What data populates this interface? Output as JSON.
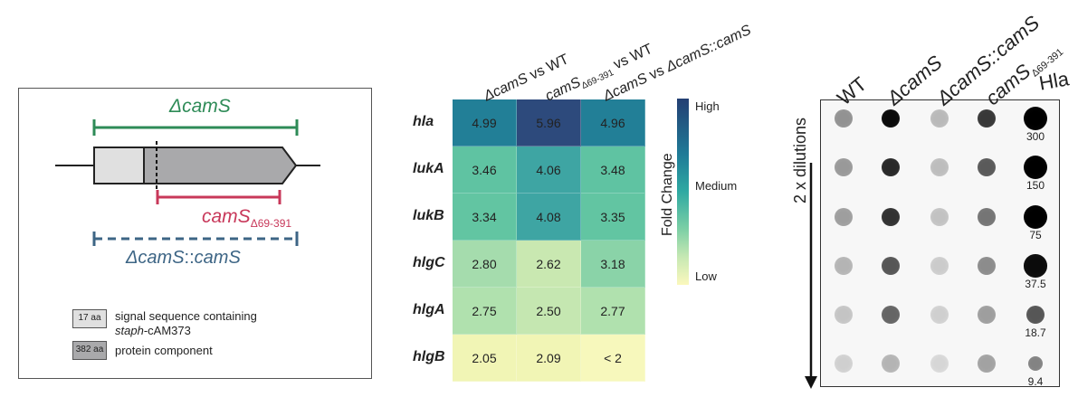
{
  "panel_a": {
    "construct_delta": "ΔcamS",
    "construct_trunc_base": "camS",
    "construct_trunc_sub": "Δ69-391",
    "construct_comp": "ΔcamS::camS",
    "legend": [
      {
        "box": "17 aa",
        "text_line1": "signal sequence containing",
        "text_line2_italic": "staph",
        "text_line2_rest": "-cAM373",
        "color": "#e0e0e0"
      },
      {
        "box": "382 aa",
        "text_line1": "protein component",
        "color": "#a9a9ab"
      }
    ],
    "colors": {
      "green": "#2e8b57",
      "red": "#c8385a",
      "blue": "#3d6585",
      "gene_light": "#e0e0e0",
      "gene_dark": "#a9a9ab"
    }
  },
  "heatmap": {
    "columns": [
      {
        "part1": "ΔcamS",
        "part2": " vs WT"
      },
      {
        "part1": "camS",
        "sub": "Δ69-391",
        "part2": " vs WT"
      },
      {
        "part1": "ΔcamS",
        "part2": " vs ",
        "part3": "ΔcamS::camS"
      }
    ],
    "rows": [
      "hla",
      "lukA",
      "lukB",
      "hlgC",
      "hlgA",
      "hlgB"
    ],
    "values": [
      [
        "4.99",
        "5.96",
        "4.96"
      ],
      [
        "3.46",
        "4.06",
        "3.48"
      ],
      [
        "3.34",
        "4.08",
        "3.35"
      ],
      [
        "2.80",
        "2.62",
        "3.18"
      ],
      [
        "2.75",
        "2.50",
        "2.77"
      ],
      [
        "2.05",
        "2.09",
        "< 2"
      ]
    ],
    "cell_colors": [
      [
        "#227f97",
        "#2d4a7c",
        "#227f97"
      ],
      [
        "#5fc3a2",
        "#3ea5a3",
        "#5fc3a2"
      ],
      [
        "#62c5a2",
        "#3ea5a3",
        "#62c5a2"
      ],
      [
        "#a5dcad",
        "#c9e8b1",
        "#8ad3a8"
      ],
      [
        "#b0e1ae",
        "#c5e7b1",
        "#b0e1ae"
      ],
      [
        "#f1f5b5",
        "#f1f5b5",
        "#f7f8bc"
      ]
    ],
    "colorbar": {
      "high": "High",
      "medium": "Medium",
      "low": "Low",
      "title": "Fold Change"
    }
  },
  "dot_blot": {
    "headers": [
      {
        "text": "WT"
      },
      {
        "text": "ΔcamS"
      },
      {
        "text": "ΔcamS::camS"
      },
      {
        "text": "camS",
        "sub": "Δ69-391"
      },
      {
        "text": "Hla"
      }
    ],
    "axis_label": "2 x dilutions",
    "hla_amounts": [
      "300",
      "150",
      "75",
      "37.5",
      "18.7",
      "9.4"
    ],
    "intensity": [
      [
        0.35,
        0.95,
        0.18,
        0.75,
        1.0
      ],
      [
        0.32,
        0.82,
        0.16,
        0.6,
        1.0
      ],
      [
        0.3,
        0.78,
        0.14,
        0.48,
        1.0
      ],
      [
        0.2,
        0.62,
        0.1,
        0.38,
        0.95
      ],
      [
        0.13,
        0.55,
        0.08,
        0.3,
        0.62
      ],
      [
        0.08,
        0.2,
        0.05,
        0.28,
        0.42
      ]
    ]
  }
}
